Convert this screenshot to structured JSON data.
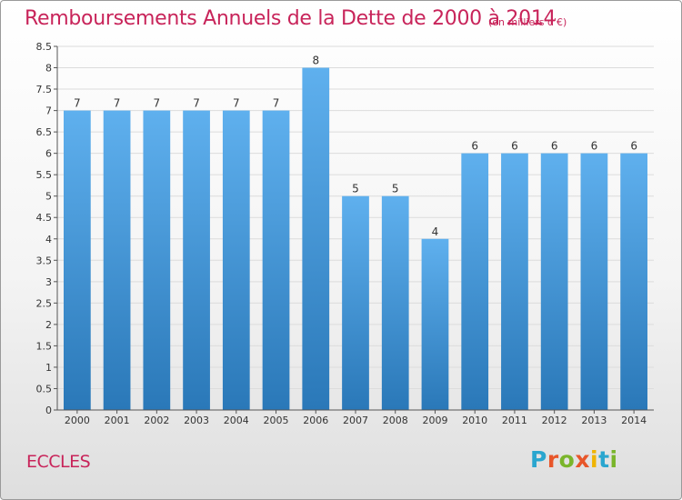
{
  "title": "Remboursements Annuels de la Dette de 2000 à 2014",
  "subtitle": "(en milliers d'€)",
  "commune": "ECCLES",
  "brand": {
    "letters": [
      "P",
      "r",
      "o",
      "x",
      "i",
      "t",
      "i"
    ],
    "colors": [
      "#2aa6cf",
      "#e8562a",
      "#7ab52b",
      "#e8562a",
      "#f0b400",
      "#2aa6cf",
      "#7ab52b"
    ]
  },
  "colors": {
    "bar": "#5aabea",
    "bar_edge": "#2a78b8",
    "title": "#c8245a"
  },
  "chart_data": {
    "type": "bar",
    "title": "Remboursements Annuels de la Dette de 2000 à 2014",
    "subtitle": "(en milliers d'€)",
    "categories": [
      "2000",
      "2001",
      "2002",
      "2003",
      "2004",
      "2005",
      "2006",
      "2007",
      "2008",
      "2009",
      "2010",
      "2011",
      "2012",
      "2013",
      "2014"
    ],
    "values": [
      7,
      7,
      7,
      7,
      7,
      7,
      8,
      5,
      5,
      4,
      6,
      6,
      6,
      6,
      6
    ],
    "value_labels": [
      "7",
      "7",
      "7",
      "7",
      "7",
      "7",
      "8",
      "5",
      "5",
      "4",
      "6",
      "6",
      "6",
      "6",
      "6"
    ],
    "ylim": [
      0,
      8.5
    ],
    "yticks": [
      0,
      0.5,
      1,
      1.5,
      2,
      2.5,
      3,
      3.5,
      4,
      4.5,
      5,
      5.5,
      6,
      6.5,
      7,
      7.5,
      8,
      8.5
    ],
    "ytick_labels": [
      "0",
      "0.5",
      "1",
      "1.5",
      "2",
      "2.5",
      "3",
      "3.5",
      "4",
      "4.5",
      "5",
      "5.5",
      "6",
      "6.5",
      "7",
      "7.5",
      "8",
      "8.5"
    ],
    "grid": true,
    "xlabel": "",
    "ylabel": ""
  }
}
